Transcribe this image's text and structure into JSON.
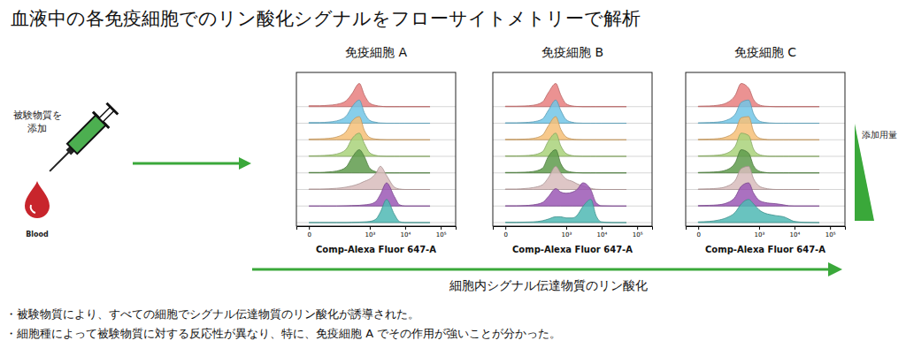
{
  "title": "血液中の各免疫細胞でのリン酸化シグナルをフローサイトメトリーで解析",
  "input_label": [
    "被験物質を",
    "添加"
  ],
  "blood_label": "Blood",
  "dose_label": "添加用量",
  "arrow_label": "細胞内シグナル伝達物質のリン酸化",
  "notes": [
    "・被験物質により、すべての細胞でシグナル伝達物質のリン酸化が誘導された。",
    "・細胞種によって被験物質に対する反応性が異なり、特に、免疫細胞 A でその作用が強いことが分かった。"
  ],
  "chart_data": [
    {
      "type": "ridgeline",
      "title": "免疫細胞 A",
      "x_label": "Comp-Alexa Fluor 647-A",
      "log": "x",
      "grid": false,
      "tick_labels": "x",
      "xlim": [
        -25,
        262144
      ],
      "xticks": [
        0,
        {
          "value": 1000,
          "label": "10³"
        },
        {
          "value": 10000,
          "label": "10⁴"
        },
        {
          "value": 100000,
          "label": "10⁵"
        }
      ],
      "ylim": [
        0,
        100
      ],
      "x": [
        0,
        20,
        50,
        100,
        200,
        300,
        500,
        700,
        1000,
        1500,
        2000,
        3000,
        5000,
        7000,
        10000,
        20000,
        50000
      ],
      "series": [
        {
          "color": "#e87f7f",
          "values": [
            4,
            4,
            6,
            10,
            25,
            55,
            100,
            50,
            15,
            5,
            2,
            0,
            0,
            0,
            0,
            0,
            0
          ]
        },
        {
          "color": "#72c6e6",
          "values": [
            3,
            3,
            5,
            10,
            30,
            70,
            100,
            45,
            12,
            4,
            1,
            0,
            0,
            0,
            0,
            0,
            0
          ]
        },
        {
          "color": "#f6bf78",
          "values": [
            3,
            4,
            6,
            12,
            35,
            80,
            100,
            40,
            10,
            3,
            1,
            0,
            0,
            0,
            0,
            0,
            0
          ]
        },
        {
          "color": "#a9d27a",
          "values": [
            2,
            3,
            5,
            10,
            30,
            75,
            100,
            55,
            15,
            4,
            1,
            0,
            0,
            0,
            0,
            0,
            0
          ]
        },
        {
          "color": "#5f9b4c",
          "values": [
            2,
            2,
            4,
            8,
            25,
            65,
            100,
            70,
            20,
            5,
            1,
            0,
            0,
            0,
            0,
            0,
            0
          ]
        },
        {
          "color": "#d8bcbc",
          "values": [
            2,
            2,
            3,
            5,
            10,
            15,
            25,
            35,
            45,
            70,
            100,
            60,
            10,
            2,
            0,
            0,
            0
          ]
        },
        {
          "color": "#9b58b5",
          "values": [
            0,
            0,
            0,
            0,
            1,
            2,
            3,
            5,
            8,
            20,
            50,
            100,
            40,
            5,
            0,
            0,
            0
          ]
        },
        {
          "color": "#4fb8b4",
          "values": [
            0,
            0,
            0,
            0,
            0,
            1,
            2,
            3,
            5,
            15,
            45,
            100,
            35,
            4,
            0,
            0,
            0
          ]
        }
      ]
    },
    {
      "type": "ridgeline",
      "title": "免疫細胞 B",
      "x_label": "Comp-Alexa Fluor 647-A",
      "log": "x",
      "grid": false,
      "tick_labels": "x",
      "xlim": [
        -25,
        262144
      ],
      "xticks": [
        0,
        {
          "value": 1000,
          "label": "10³"
        },
        {
          "value": 10000,
          "label": "10⁴"
        },
        {
          "value": 100000,
          "label": "10⁵"
        }
      ],
      "ylim": [
        0,
        100
      ],
      "x": [
        0,
        20,
        50,
        100,
        200,
        300,
        500,
        700,
        1000,
        1500,
        2000,
        3000,
        5000,
        7000,
        10000,
        20000,
        50000
      ],
      "series": [
        {
          "color": "#e87f7f",
          "values": [
            2,
            2,
            3,
            6,
            20,
            60,
            100,
            50,
            12,
            3,
            1,
            0,
            0,
            0,
            0,
            0,
            0
          ]
        },
        {
          "color": "#72c6e6",
          "values": [
            2,
            2,
            3,
            6,
            18,
            55,
            100,
            55,
            15,
            4,
            1,
            0,
            0,
            0,
            0,
            0,
            0
          ]
        },
        {
          "color": "#f6bf78",
          "values": [
            2,
            2,
            3,
            6,
            20,
            60,
            100,
            45,
            12,
            3,
            1,
            0,
            0,
            0,
            0,
            0,
            0
          ]
        },
        {
          "color": "#a9d27a",
          "values": [
            2,
            2,
            3,
            6,
            20,
            65,
            100,
            45,
            12,
            3,
            1,
            0,
            0,
            0,
            0,
            0,
            0
          ]
        },
        {
          "color": "#5f9b4c",
          "values": [
            2,
            2,
            3,
            6,
            20,
            70,
            100,
            40,
            10,
            3,
            1,
            0,
            0,
            0,
            0,
            0,
            0
          ]
        },
        {
          "color": "#d8bcbc",
          "values": [
            2,
            2,
            4,
            8,
            20,
            50,
            100,
            70,
            45,
            35,
            25,
            15,
            5,
            1,
            0,
            0,
            0
          ]
        },
        {
          "color": "#9b58b5",
          "values": [
            1,
            1,
            2,
            5,
            15,
            40,
            75,
            60,
            55,
            60,
            70,
            100,
            70,
            15,
            1,
            0,
            0
          ]
        },
        {
          "color": "#4fb8b4",
          "values": [
            1,
            1,
            2,
            3,
            8,
            15,
            25,
            25,
            20,
            20,
            30,
            70,
            100,
            30,
            3,
            0,
            0
          ]
        }
      ]
    },
    {
      "type": "ridgeline",
      "title": "免疫細胞 C",
      "x_label": "Comp-Alexa Fluor 647-A",
      "log": "x",
      "grid": false,
      "tick_labels": "x",
      "xlim": [
        -25,
        262144
      ],
      "xticks": [
        0,
        {
          "value": 1000,
          "label": "10³"
        },
        {
          "value": 10000,
          "label": "10⁴"
        },
        {
          "value": 100000,
          "label": "10⁵"
        }
      ],
      "ylim": [
        0,
        100
      ],
      "x": [
        0,
        20,
        50,
        100,
        200,
        300,
        500,
        700,
        1000,
        1500,
        2000,
        3000,
        5000,
        7000,
        10000,
        20000,
        50000
      ],
      "series": [
        {
          "color": "#e87f7f",
          "values": [
            2,
            3,
            6,
            15,
            50,
            100,
            80,
            30,
            8,
            2,
            1,
            0,
            0,
            0,
            0,
            0,
            0
          ]
        },
        {
          "color": "#72c6e6",
          "values": [
            2,
            3,
            5,
            12,
            40,
            90,
            100,
            40,
            10,
            3,
            1,
            0,
            0,
            0,
            0,
            0,
            0
          ]
        },
        {
          "color": "#f6bf78",
          "values": [
            2,
            3,
            5,
            12,
            40,
            95,
            100,
            35,
            8,
            2,
            0,
            0,
            0,
            0,
            0,
            0,
            0
          ]
        },
        {
          "color": "#a9d27a",
          "values": [
            2,
            3,
            5,
            12,
            45,
            100,
            90,
            30,
            8,
            2,
            0,
            0,
            0,
            0,
            0,
            0,
            0
          ]
        },
        {
          "color": "#5f9b4c",
          "values": [
            2,
            3,
            5,
            12,
            45,
            100,
            85,
            30,
            8,
            2,
            0,
            0,
            0,
            0,
            0,
            0,
            0
          ]
        },
        {
          "color": "#d8bcbc",
          "values": [
            2,
            3,
            5,
            12,
            40,
            90,
            100,
            45,
            15,
            5,
            2,
            0,
            0,
            0,
            0,
            0,
            0
          ]
        },
        {
          "color": "#9b58b5",
          "values": [
            2,
            3,
            5,
            12,
            40,
            85,
            100,
            55,
            25,
            15,
            12,
            10,
            5,
            1,
            0,
            0,
            0
          ]
        },
        {
          "color": "#4fb8b4",
          "values": [
            3,
            5,
            10,
            20,
            45,
            80,
            100,
            80,
            55,
            40,
            35,
            30,
            25,
            15,
            5,
            1,
            0
          ]
        }
      ]
    }
  ]
}
